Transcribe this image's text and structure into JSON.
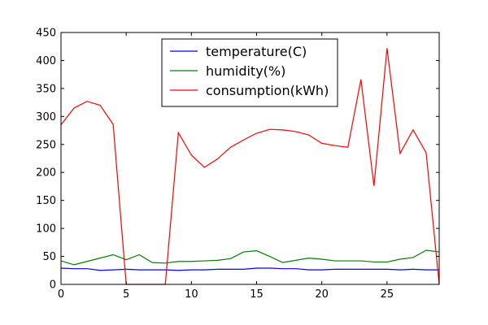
{
  "chart_data": {
    "type": "line",
    "title": "",
    "xlabel": "",
    "ylabel": "",
    "xlim": [
      0,
      29
    ],
    "ylim": [
      0,
      450
    ],
    "xticks": [
      "0",
      "5",
      "10",
      "15",
      "20",
      "25"
    ],
    "yticks": [
      "0",
      "50",
      "100",
      "150",
      "200",
      "250",
      "300",
      "350",
      "400",
      "450"
    ],
    "grid": false,
    "legend_position": "top-center",
    "x": [
      0,
      1,
      2,
      3,
      4,
      5,
      6,
      7,
      8,
      9,
      10,
      11,
      12,
      13,
      14,
      15,
      16,
      17,
      18,
      19,
      20,
      21,
      22,
      23,
      24,
      25,
      26,
      27,
      28,
      29
    ],
    "series": [
      {
        "name": "temperature(C)",
        "color": "#0000ff",
        "values": [
          29,
          28,
          28,
          25,
          26,
          27,
          26,
          26,
          26,
          25,
          26,
          26,
          27,
          27,
          27,
          29,
          29,
          28,
          28,
          26,
          26,
          27,
          27,
          27,
          27,
          27,
          26,
          27,
          26,
          26
        ]
      },
      {
        "name": "humidity(%)",
        "color": "#008000",
        "values": [
          42,
          35,
          41,
          47,
          53,
          44,
          53,
          39,
          38,
          41,
          41,
          42,
          43,
          46,
          58,
          60,
          50,
          39,
          43,
          47,
          45,
          42,
          42,
          42,
          40,
          40,
          45,
          48,
          61,
          58
        ]
      },
      {
        "name": "consumption(kWh)",
        "color": "#ff0000",
        "values": [
          285,
          315,
          327,
          320,
          286,
          0,
          0,
          0,
          0,
          271,
          231,
          209,
          224,
          245,
          258,
          270,
          277,
          276,
          273,
          267,
          252,
          248,
          245,
          366,
          176,
          422,
          234,
          276,
          235,
          0
        ]
      }
    ]
  }
}
